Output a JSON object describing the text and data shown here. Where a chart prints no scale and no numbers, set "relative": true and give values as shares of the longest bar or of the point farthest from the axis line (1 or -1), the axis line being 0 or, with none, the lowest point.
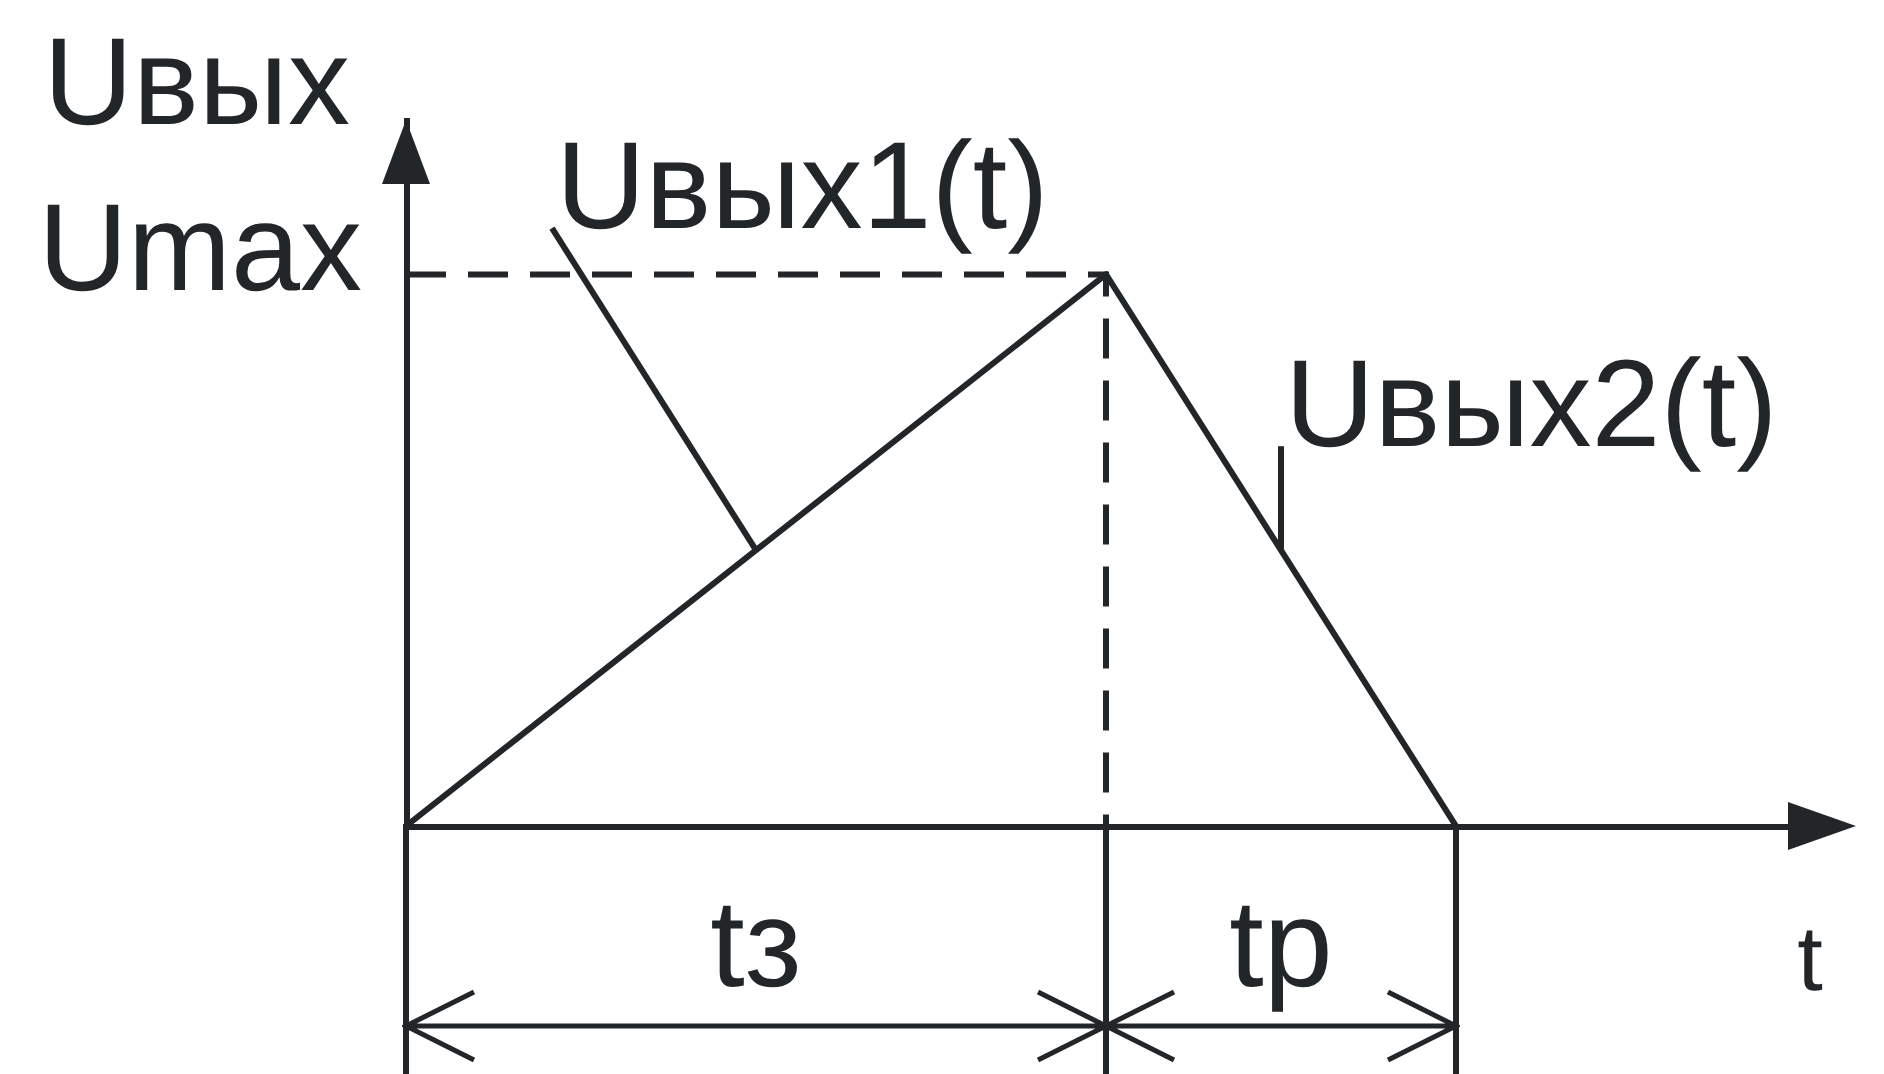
{
  "chart_data": {
    "type": "line",
    "relative": true,
    "ylabel": "Uвых",
    "xlabel": "t",
    "categories": [
      null,
      null,
      null,
      null,
      null
    ],
    "series": [
      {
        "name": "Uвых1(t)",
        "color": "#222629",
        "values": [
          0,
          0.5,
          1,
          null,
          null
        ]
      },
      {
        "name": "Uвых2(t)",
        "color": "#222629",
        "values": [
          null,
          null,
          1,
          0,
          null
        ]
      }
    ],
    "ref_lines": [
      {
        "axis": "y",
        "value": 1,
        "label": "Umax",
        "line_style": "dashed"
      }
    ],
    "annotations": [
      "tз",
      "tр"
    ]
  }
}
